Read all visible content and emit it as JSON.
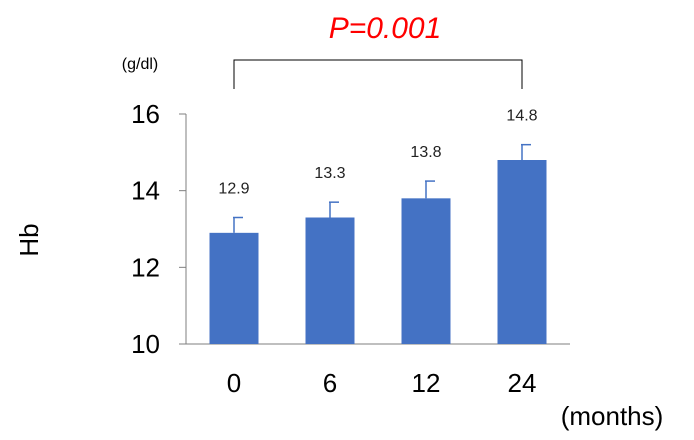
{
  "chart_data": {
    "type": "bar",
    "categories": [
      "0",
      "6",
      "12",
      "24"
    ],
    "values": [
      12.9,
      13.3,
      13.8,
      14.8
    ],
    "error_upper": [
      13.3,
      13.7,
      14.25,
      15.2
    ],
    "data_labels": [
      "12.9",
      "13.3",
      "13.8",
      "14.8"
    ],
    "ylabel": "Hb",
    "y_unit": "(g/dl)",
    "x_unit": "(months)",
    "ylim": [
      10,
      16
    ],
    "yticks": [
      "10",
      "12",
      "14",
      "16"
    ],
    "annotation": "P=0.001",
    "bar_color": "#4472c4",
    "annotation_color": "#ff0000",
    "grid": false,
    "legend": "none"
  }
}
